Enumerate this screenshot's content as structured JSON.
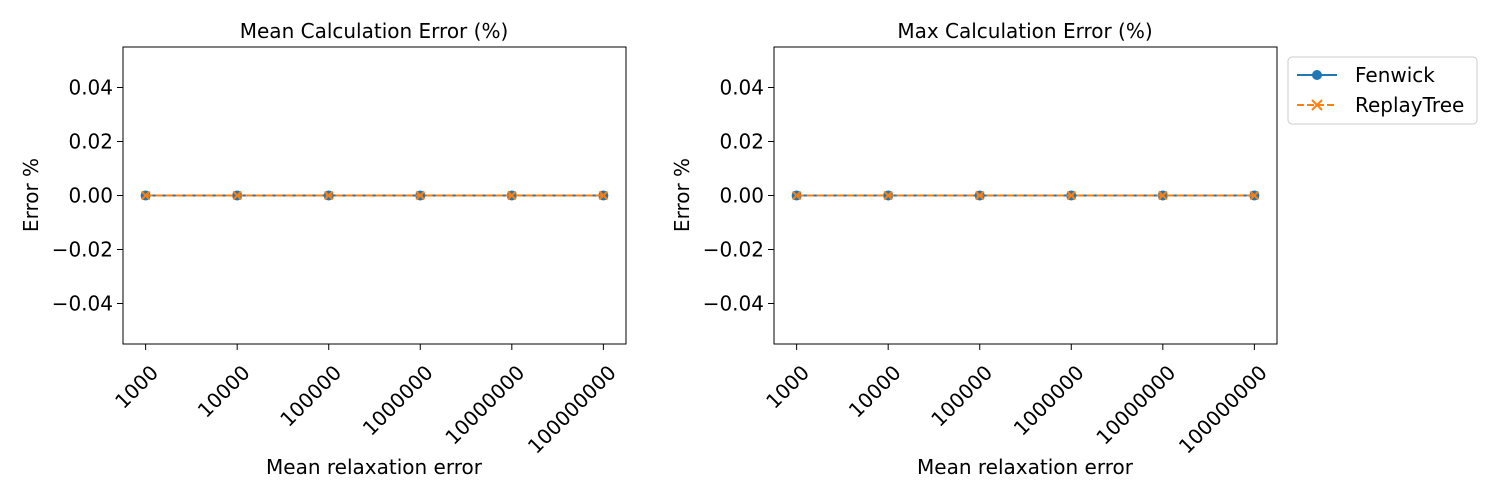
{
  "chart_data": [
    {
      "type": "line",
      "title": "Mean Calculation Error (%)",
      "xlabel": "Mean relaxation error",
      "ylabel": "Error %",
      "categories": [
        "1000",
        "10000",
        "100000",
        "1000000",
        "10000000",
        "100000000"
      ],
      "ylim": [
        -0.055,
        0.055
      ],
      "yticks": [
        -0.04,
        -0.02,
        0.0,
        0.02,
        0.04
      ],
      "ytick_labels": [
        "−0.04",
        "−0.02",
        "0.00",
        "0.02",
        "0.04"
      ],
      "grid": false,
      "series": [
        {
          "name": "Fenwick",
          "values": [
            0,
            0,
            0,
            0,
            0,
            0
          ],
          "color": "#1f77b4",
          "marker": "circle",
          "linestyle": "solid"
        },
        {
          "name": "ReplayTree",
          "values": [
            0,
            0,
            0,
            0,
            0,
            0
          ],
          "color": "#ff7f0e",
          "marker": "x",
          "linestyle": "dashed"
        }
      ]
    },
    {
      "type": "line",
      "title": "Max Calculation Error (%)",
      "xlabel": "Mean relaxation error",
      "ylabel": "Error %",
      "categories": [
        "1000",
        "10000",
        "100000",
        "1000000",
        "10000000",
        "100000000"
      ],
      "ylim": [
        -0.055,
        0.055
      ],
      "yticks": [
        -0.04,
        -0.02,
        0.0,
        0.02,
        0.04
      ],
      "ytick_labels": [
        "−0.04",
        "−0.02",
        "0.00",
        "0.02",
        "0.04"
      ],
      "grid": false,
      "legend": "outside-top-right",
      "series": [
        {
          "name": "Fenwick",
          "values": [
            0,
            0,
            0,
            0,
            0,
            0
          ],
          "color": "#1f77b4",
          "marker": "circle",
          "linestyle": "solid"
        },
        {
          "name": "ReplayTree",
          "values": [
            0,
            0,
            0,
            0,
            0,
            0
          ],
          "color": "#ff7f0e",
          "marker": "x",
          "linestyle": "dashed"
        }
      ]
    }
  ]
}
